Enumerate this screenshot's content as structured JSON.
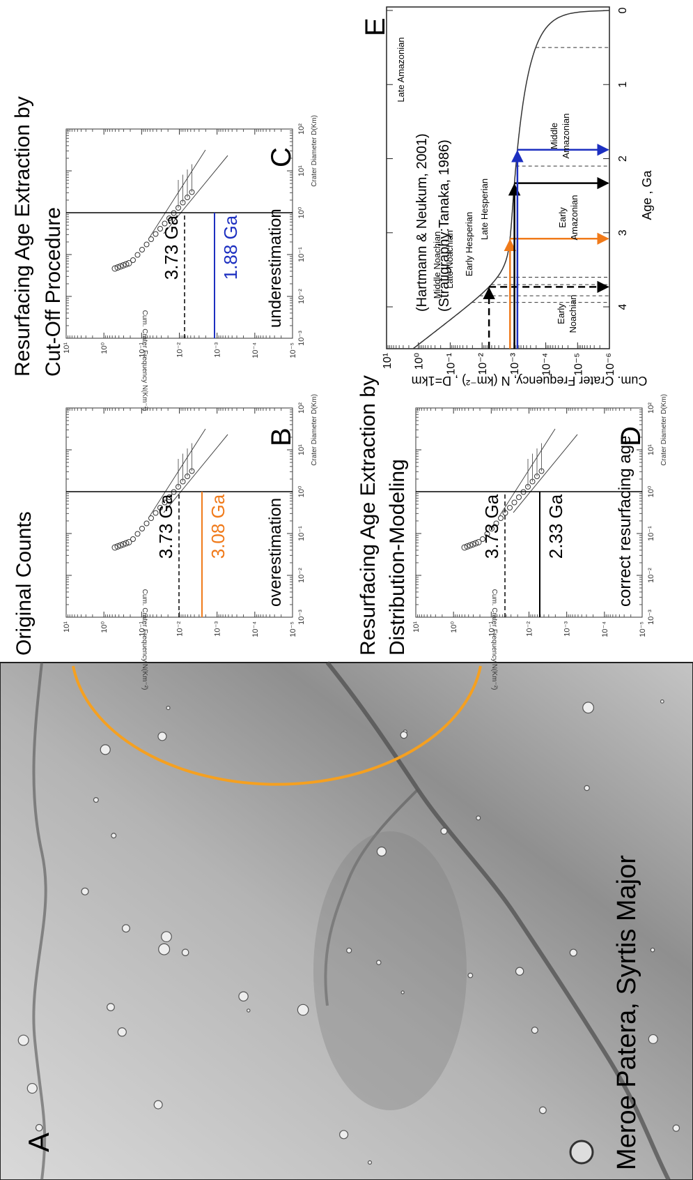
{
  "panel_a": {
    "label": "A",
    "caption": "Meroe Patera,  Syrtis Major"
  },
  "panel_b": {
    "heading": "Original Counts",
    "label": "B",
    "ref_age": "3.73 Ga",
    "age": "3.08 Ga",
    "note": "overestimation"
  },
  "panel_c": {
    "heading": [
      "Resurfacing Age Extraction by",
      "Cut-Off Procedure"
    ],
    "label": "C",
    "ref_age": "3.73 Ga",
    "age": "1.88 Ga",
    "note": "underestimation"
  },
  "panel_d": {
    "heading": [
      "Resurfacing Age Extraction by",
      "Distribution-Modeling"
    ],
    "label": "D",
    "ref_age": "3.73 Ga",
    "age": "2.33 Ga",
    "note": "correct resurfacing age"
  },
  "csfd_axes": {
    "y_title": "Cum. Crater Frequency   N(Km⁻²)",
    "x_title": "Crater Diameter D(Km)",
    "yticks": [
      "10¹",
      "10⁰",
      "10⁻¹",
      "10⁻²",
      "10⁻³",
      "10⁻⁴",
      "10⁻⁵"
    ],
    "xticks": [
      "10⁻³",
      "10⁻²",
      "10⁻¹",
      "10⁰",
      "10¹",
      "10²"
    ]
  },
  "panel_e": {
    "label": "E",
    "refs": [
      "(Hartmann & Neukum, 2001)",
      "(Stratigraphy:Tanaka, 1986)"
    ],
    "y_title": "Cum. Crater Frequency, N (km⁻²) , D=1km",
    "x_title": "Age , Ga",
    "yticks": [
      "10¹",
      "10⁰",
      "10⁻¹",
      "10⁻²",
      "10⁻³",
      "10⁻⁴",
      "10⁻⁵",
      "10⁻⁶"
    ],
    "xticks": [
      4,
      3,
      2,
      1,
      0
    ],
    "epochs": [
      [
        "Middle Noachian"
      ],
      [
        "Late Noachian"
      ],
      [
        "Early Hesperian"
      ],
      [
        "Late Hesperian"
      ],
      [
        "Early",
        "Amazonian"
      ],
      [
        "Middle",
        "Amazonian"
      ],
      [
        "Late Amazonian"
      ],
      [
        "Early",
        "Noachian"
      ]
    ]
  }
}
